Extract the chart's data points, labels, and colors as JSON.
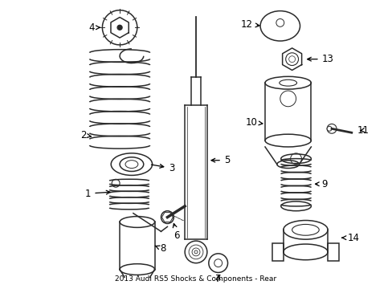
{
  "title": "2013 Audi RS5 Shocks & Components - Rear",
  "bg_color": "#ffffff",
  "line_color": "#2a2a2a",
  "label_color": "#000000",
  "figsize": [
    4.89,
    3.6
  ],
  "dpi": 100
}
